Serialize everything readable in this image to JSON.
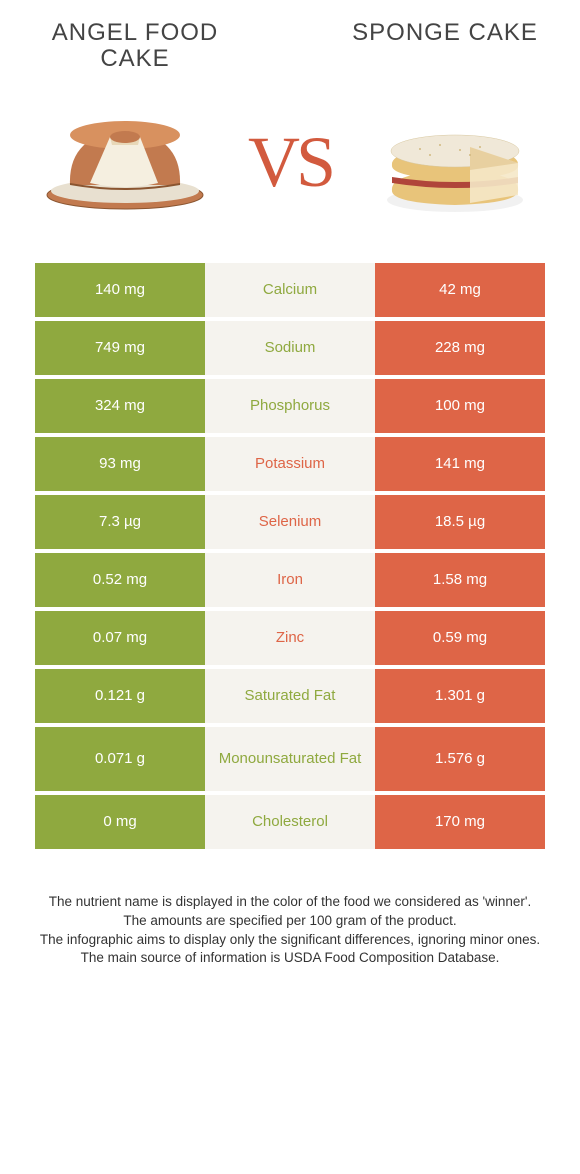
{
  "foods": {
    "left": "ANGEL FOOD CAKE",
    "right": "SPONGE CAKE"
  },
  "vs": "VS",
  "colors": {
    "left_bg": "#8fa93f",
    "right_bg": "#de6547",
    "mid_bg": "#f5f3ee",
    "nutrient_green": "#8fa93f",
    "nutrient_orange": "#de6547",
    "vs_color": "#d25a3e"
  },
  "rows": [
    {
      "left": "140 mg",
      "nutrient": "Calcium",
      "right": "42 mg",
      "winner": "left"
    },
    {
      "left": "749 mg",
      "nutrient": "Sodium",
      "right": "228 mg",
      "winner": "left"
    },
    {
      "left": "324 mg",
      "nutrient": "Phosphorus",
      "right": "100 mg",
      "winner": "left"
    },
    {
      "left": "93 mg",
      "nutrient": "Potassium",
      "right": "141 mg",
      "winner": "right"
    },
    {
      "left": "7.3 µg",
      "nutrient": "Selenium",
      "right": "18.5 µg",
      "winner": "right"
    },
    {
      "left": "0.52 mg",
      "nutrient": "Iron",
      "right": "1.58 mg",
      "winner": "right"
    },
    {
      "left": "0.07 mg",
      "nutrient": "Zinc",
      "right": "0.59 mg",
      "winner": "right"
    },
    {
      "left": "0.121 g",
      "nutrient": "Saturated Fat",
      "right": "1.301 g",
      "winner": "left"
    },
    {
      "left": "0.071 g",
      "nutrient": "Monounsaturated Fat",
      "right": "1.576 g",
      "winner": "left",
      "tall": true
    },
    {
      "left": "0 mg",
      "nutrient": "Cholesterol",
      "right": "170 mg",
      "winner": "left"
    }
  ],
  "footer": {
    "line1": "The nutrient name is displayed in the color of the food we considered as 'winner'.",
    "line2": "The amounts are specified per 100 gram of the product.",
    "line3": "The infographic aims to display only the significant differences, ignoring minor ones.",
    "line4": "The main source of information is USDA Food Composition Database."
  }
}
